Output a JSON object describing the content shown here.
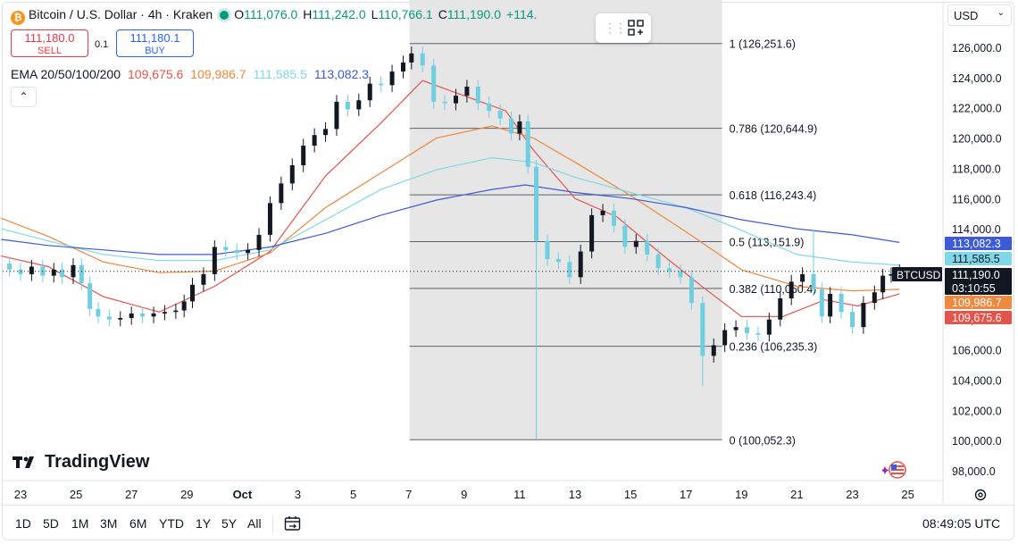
{
  "header": {
    "symbol_title": "Bitcoin / U.S. Dollar · 4h · Kraken",
    "ohlc": [
      {
        "label": "O",
        "value": "111,076.0"
      },
      {
        "label": "H",
        "value": "111,242.0"
      },
      {
        "label": "L",
        "value": "110,766.1"
      },
      {
        "label": "C",
        "value": "111,190.0"
      }
    ],
    "change": "+114.",
    "icon": "bitcoin-icon"
  },
  "trade": {
    "sell_price": "111,180.0",
    "sell_label": "SELL",
    "buy_price": "111,180.1",
    "buy_label": "BUY",
    "spread": "0.1"
  },
  "ema": {
    "label": "EMA 20/50/100/200",
    "values": [
      {
        "value": "109,675.6",
        "color": "#e5534b"
      },
      {
        "value": "109,986.7",
        "color": "#f0883e"
      },
      {
        "value": "111,585.5",
        "color": "#7fd8e8"
      },
      {
        "value": "113,082.3",
        "color": "#3d5bd9"
      }
    ]
  },
  "currency": {
    "value": "USD"
  },
  "brand": {
    "name": "TradingView"
  },
  "bottom_bar": {
    "ranges": [
      "1D",
      "5D",
      "1M",
      "3M",
      "6M",
      "YTD",
      "1Y",
      "5Y",
      "All"
    ],
    "time": "08:49:05 UTC"
  },
  "chart_data": {
    "type": "candlestick",
    "symbol": "BTCUSD",
    "timeframe": "4h",
    "y_range": [
      97200,
      127600
    ],
    "y_ticks": [
      98000,
      100000,
      102000,
      104000,
      106000,
      108000,
      110000,
      112000,
      114000,
      116000,
      118000,
      120000,
      122000,
      124000,
      126000
    ],
    "y_tick_labels": [
      "98,000.0",
      "100,000.0",
      "102,000.0",
      "104,000.0",
      "106,000.0",
      "108,000.0",
      "110,000.0",
      "112,000.0",
      "114,000.0",
      "116,000.0",
      "118,000.0",
      "120,000.0",
      "122,000.0",
      "124,000.0",
      "126,000.0"
    ],
    "x_ticks": [
      {
        "label": "23",
        "day": 23
      },
      {
        "label": "25",
        "day": 25
      },
      {
        "label": "27",
        "day": 27
      },
      {
        "label": "29",
        "day": 29
      },
      {
        "label": "Oct",
        "day": 31,
        "bold": true
      },
      {
        "label": "3",
        "day": 33
      },
      {
        "label": "5",
        "day": 35
      },
      {
        "label": "7",
        "day": 37
      },
      {
        "label": "9",
        "day": 39
      },
      {
        "label": "11",
        "day": 41
      },
      {
        "label": "13",
        "day": 43
      },
      {
        "label": "15",
        "day": 45
      },
      {
        "label": "17",
        "day": 47
      },
      {
        "label": "19",
        "day": 49
      },
      {
        "label": "21",
        "day": 51
      },
      {
        "label": "23",
        "day": 53
      },
      {
        "label": "25",
        "day": 55
      }
    ],
    "close_series": [
      [
        22.3,
        111.7
      ],
      [
        22.6,
        111.3
      ],
      [
        23,
        111.0
      ],
      [
        23.4,
        111.5
      ],
      [
        23.8,
        110.9
      ],
      [
        24.2,
        111.3
      ],
      [
        24.5,
        110.8
      ],
      [
        24.9,
        111.6
      ],
      [
        25.2,
        110.4
      ],
      [
        25.5,
        108.7
      ],
      [
        25.8,
        108.2
      ],
      [
        26.2,
        108.0
      ],
      [
        26.6,
        108.1
      ],
      [
        27,
        108.4
      ],
      [
        27.4,
        108.2
      ],
      [
        27.8,
        108.4
      ],
      [
        28.2,
        108.5
      ],
      [
        28.6,
        108.6
      ],
      [
        28.9,
        109.2
      ],
      [
        29.2,
        110.3
      ],
      [
        29.6,
        111.0
      ],
      [
        30,
        112.8
      ],
      [
        30.4,
        112.6
      ],
      [
        30.8,
        112.4
      ],
      [
        31.2,
        112.6
      ],
      [
        31.6,
        113.6
      ],
      [
        32,
        115.7
      ],
      [
        32.4,
        117.0
      ],
      [
        32.8,
        118.2
      ],
      [
        33.2,
        119.5
      ],
      [
        33.6,
        120.2
      ],
      [
        34,
        120.6
      ],
      [
        34.4,
        122.4
      ],
      [
        34.8,
        121.9
      ],
      [
        35.2,
        122.5
      ],
      [
        35.6,
        123.6
      ],
      [
        36,
        123.5
      ],
      [
        36.4,
        124.4
      ],
      [
        36.8,
        125.0
      ],
      [
        37.1,
        125.6
      ],
      [
        37.5,
        124.8
      ],
      [
        37.9,
        122.4
      ],
      [
        38.3,
        122.3
      ],
      [
        38.7,
        122.8
      ],
      [
        39.1,
        123.4
      ],
      [
        39.5,
        122.3
      ],
      [
        39.9,
        121.8
      ],
      [
        40.3,
        121.3
      ],
      [
        40.7,
        120.3
      ],
      [
        41,
        121.1
      ],
      [
        41.3,
        118.1
      ],
      [
        41.6,
        113.2
      ],
      [
        42,
        112.0
      ],
      [
        42.4,
        111.8
      ],
      [
        42.8,
        110.8
      ],
      [
        43.2,
        112.5
      ],
      [
        43.6,
        114.9
      ],
      [
        44,
        115.2
      ],
      [
        44.4,
        114.2
      ],
      [
        44.8,
        112.8
      ],
      [
        45.2,
        113.2
      ],
      [
        45.6,
        112.3
      ],
      [
        46,
        111.4
      ],
      [
        46.4,
        111.2
      ],
      [
        46.8,
        110.8
      ],
      [
        47.2,
        109.1
      ],
      [
        47.6,
        105.6
      ],
      [
        48,
        106.3
      ],
      [
        48.4,
        107.3
      ],
      [
        48.8,
        107.5
      ],
      [
        49.2,
        107.1
      ],
      [
        49.6,
        107.0
      ],
      [
        50,
        108.0
      ],
      [
        50.4,
        109.4
      ],
      [
        50.8,
        110.5
      ],
      [
        51.2,
        111.0
      ],
      [
        51.6,
        110.0
      ],
      [
        51.9,
        108.2
      ],
      [
        52.2,
        109.7
      ],
      [
        52.6,
        108.5
      ],
      [
        53,
        107.5
      ],
      [
        53.4,
        109.1
      ],
      [
        53.8,
        109.8
      ],
      [
        54.1,
        110.9
      ],
      [
        54.4,
        111.0
      ],
      [
        54.7,
        111.2
      ]
    ],
    "candle_wicks_note": "Oct 10-11 flash wick low near 100,000",
    "ema_series": [
      {
        "name": "EMA 20",
        "color": "#e5534b",
        "points": [
          [
            22.3,
            112.2
          ],
          [
            24,
            111.5
          ],
          [
            26,
            109.5
          ],
          [
            28,
            108.5
          ],
          [
            30,
            110.2
          ],
          [
            32,
            112.5
          ],
          [
            34,
            117.5
          ],
          [
            36,
            121.0
          ],
          [
            37.5,
            123.8
          ],
          [
            39,
            122.8
          ],
          [
            40.5,
            121.8
          ],
          [
            41.5,
            119.2
          ],
          [
            43,
            116.0
          ],
          [
            44.5,
            114.8
          ],
          [
            46,
            112.5
          ],
          [
            47.5,
            110.3
          ],
          [
            49,
            108.2
          ],
          [
            50.5,
            108.2
          ],
          [
            52,
            109.3
          ],
          [
            53.2,
            108.9
          ],
          [
            54.7,
            109.7
          ]
        ]
      },
      {
        "name": "EMA 50",
        "color": "#f0883e",
        "points": [
          [
            22.3,
            114.7
          ],
          [
            24,
            113.5
          ],
          [
            26,
            111.8
          ],
          [
            28,
            111.1
          ],
          [
            30,
            111.2
          ],
          [
            32,
            112.4
          ],
          [
            34,
            115.4
          ],
          [
            36,
            117.7
          ],
          [
            38,
            120.0
          ],
          [
            40,
            120.8
          ],
          [
            41.5,
            120.0
          ],
          [
            43,
            118.4
          ],
          [
            45,
            116.2
          ],
          [
            47,
            113.8
          ],
          [
            49,
            111.3
          ],
          [
            51,
            110.2
          ],
          [
            53,
            109.9
          ],
          [
            54.7,
            110.0
          ]
        ]
      },
      {
        "name": "EMA 100",
        "color": "#7fd8e8",
        "points": [
          [
            22.3,
            114.0
          ],
          [
            24,
            113.2
          ],
          [
            26,
            112.3
          ],
          [
            28,
            111.9
          ],
          [
            30,
            111.9
          ],
          [
            32,
            112.6
          ],
          [
            34,
            114.6
          ],
          [
            36,
            116.6
          ],
          [
            38,
            117.9
          ],
          [
            40,
            118.7
          ],
          [
            41.5,
            118.4
          ],
          [
            43,
            117.4
          ],
          [
            45,
            116.4
          ],
          [
            47,
            115.4
          ],
          [
            49,
            113.9
          ],
          [
            51,
            112.3
          ],
          [
            53,
            111.8
          ],
          [
            54.7,
            111.6
          ]
        ]
      },
      {
        "name": "EMA 200",
        "color": "#3d5bd9",
        "points": [
          [
            22.3,
            113.3
          ],
          [
            24,
            112.9
          ],
          [
            26,
            112.6
          ],
          [
            28,
            112.3
          ],
          [
            30,
            112.3
          ],
          [
            32,
            112.8
          ],
          [
            34,
            113.7
          ],
          [
            36,
            114.9
          ],
          [
            38,
            115.9
          ],
          [
            40,
            116.6
          ],
          [
            41.2,
            116.9
          ],
          [
            43,
            116.4
          ],
          [
            45,
            116.0
          ],
          [
            47,
            115.4
          ],
          [
            49,
            114.6
          ],
          [
            51,
            114.0
          ],
          [
            53,
            113.6
          ],
          [
            54.7,
            113.1
          ]
        ]
      }
    ],
    "fib_levels": [
      {
        "label": "1 (126,251.6)",
        "value": 126251.6
      },
      {
        "label": "0.786 (120,644.9)",
        "value": 120644.9
      },
      {
        "label": "0.618 (116,243.4)",
        "value": 116243.4
      },
      {
        "label": "0.5 (113,151.9)",
        "value": 113151.9
      },
      {
        "label": "0.382 (110,060.4)",
        "value": 110060.4
      },
      {
        "label": "0.236 (106,235.3)",
        "value": 106235.3
      },
      {
        "label": "0 (100,052.3)",
        "value": 100052.3
      }
    ],
    "fib_range_days": [
      37,
      48.3
    ],
    "price_tags": [
      {
        "text": "113,082.3",
        "value": 113082.3,
        "bg": "#3d5bd9",
        "fg": "#ffffff"
      },
      {
        "text": "111,585.5",
        "value": 111585.5,
        "bg": "#7fd8e8",
        "fg": "#131722"
      },
      {
        "text": "111,190.0",
        "value": 111190.0,
        "bg": "#131722",
        "fg": "#ffffff",
        "sub": "03:10:55"
      },
      {
        "text": "109,986.7",
        "value": 109986.7,
        "bg": "#f0883e",
        "fg": "#ffffff"
      },
      {
        "text": "109,675.6",
        "value": 109675.6,
        "bg": "#e5534b",
        "fg": "#ffffff"
      }
    ],
    "last_label": "BTCUSD",
    "last_value": 111190.0
  }
}
